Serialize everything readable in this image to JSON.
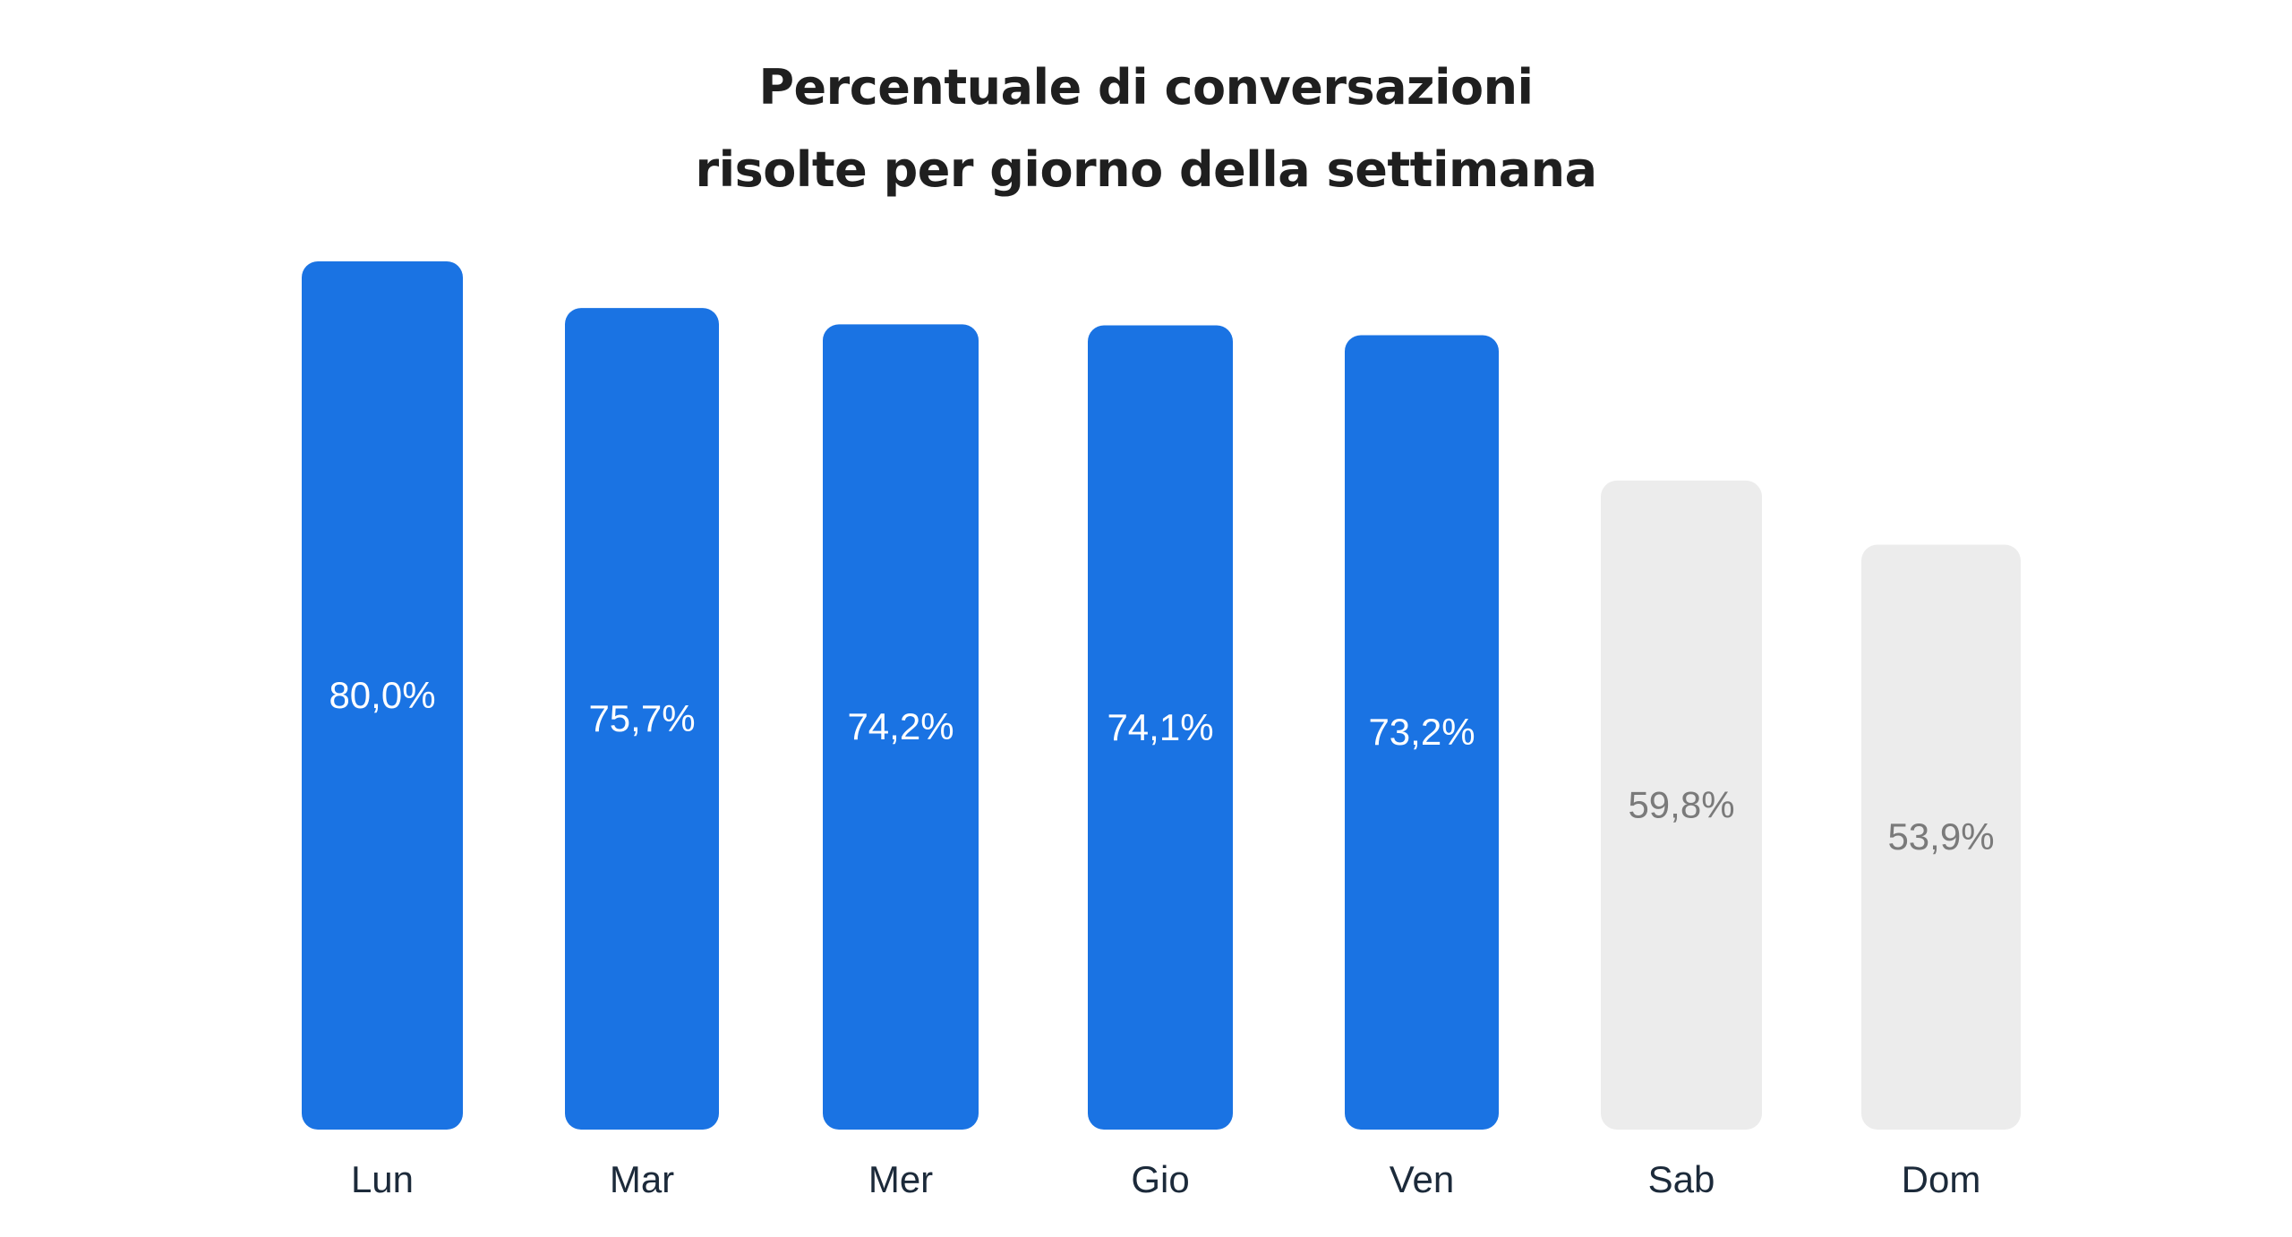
{
  "chart_data": {
    "type": "bar",
    "title_lines": [
      "Percentuale di conversazioni",
      "risolte per giorno della settimana"
    ],
    "categories": [
      "Lun",
      "Mar",
      "Mer",
      "Gio",
      "Ven",
      "Sab",
      "Dom"
    ],
    "values": [
      80.0,
      75.7,
      74.2,
      74.1,
      73.2,
      59.8,
      53.9
    ],
    "value_labels": [
      "80,0%",
      "75,7%",
      "74,2%",
      "74,1%",
      "73,2%",
      "59,8%",
      "53,9%"
    ],
    "ylim": [
      0,
      80
    ],
    "grid": false,
    "legend": "none",
    "colors": {
      "weekday_bar": "#1a73e3",
      "weekend_bar": "#ececec",
      "weekday_label": "#ffffff",
      "weekend_label": "#7a7a7a",
      "category_label": "#1c2a3a",
      "title": "#1f1f1f"
    },
    "bar_highlight": [
      true,
      true,
      true,
      true,
      true,
      false,
      false
    ]
  }
}
